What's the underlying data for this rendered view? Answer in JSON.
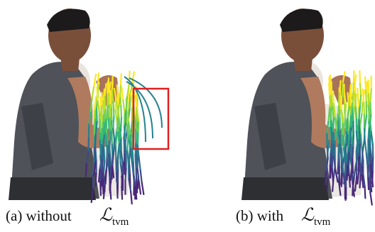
{
  "panels": [
    {
      "caption": "(a) without",
      "symbol": "ℒ",
      "subscript": "tvm"
    },
    {
      "caption": "(b) with",
      "symbol": "ℒ",
      "subscript": "tvm"
    }
  ]
}
